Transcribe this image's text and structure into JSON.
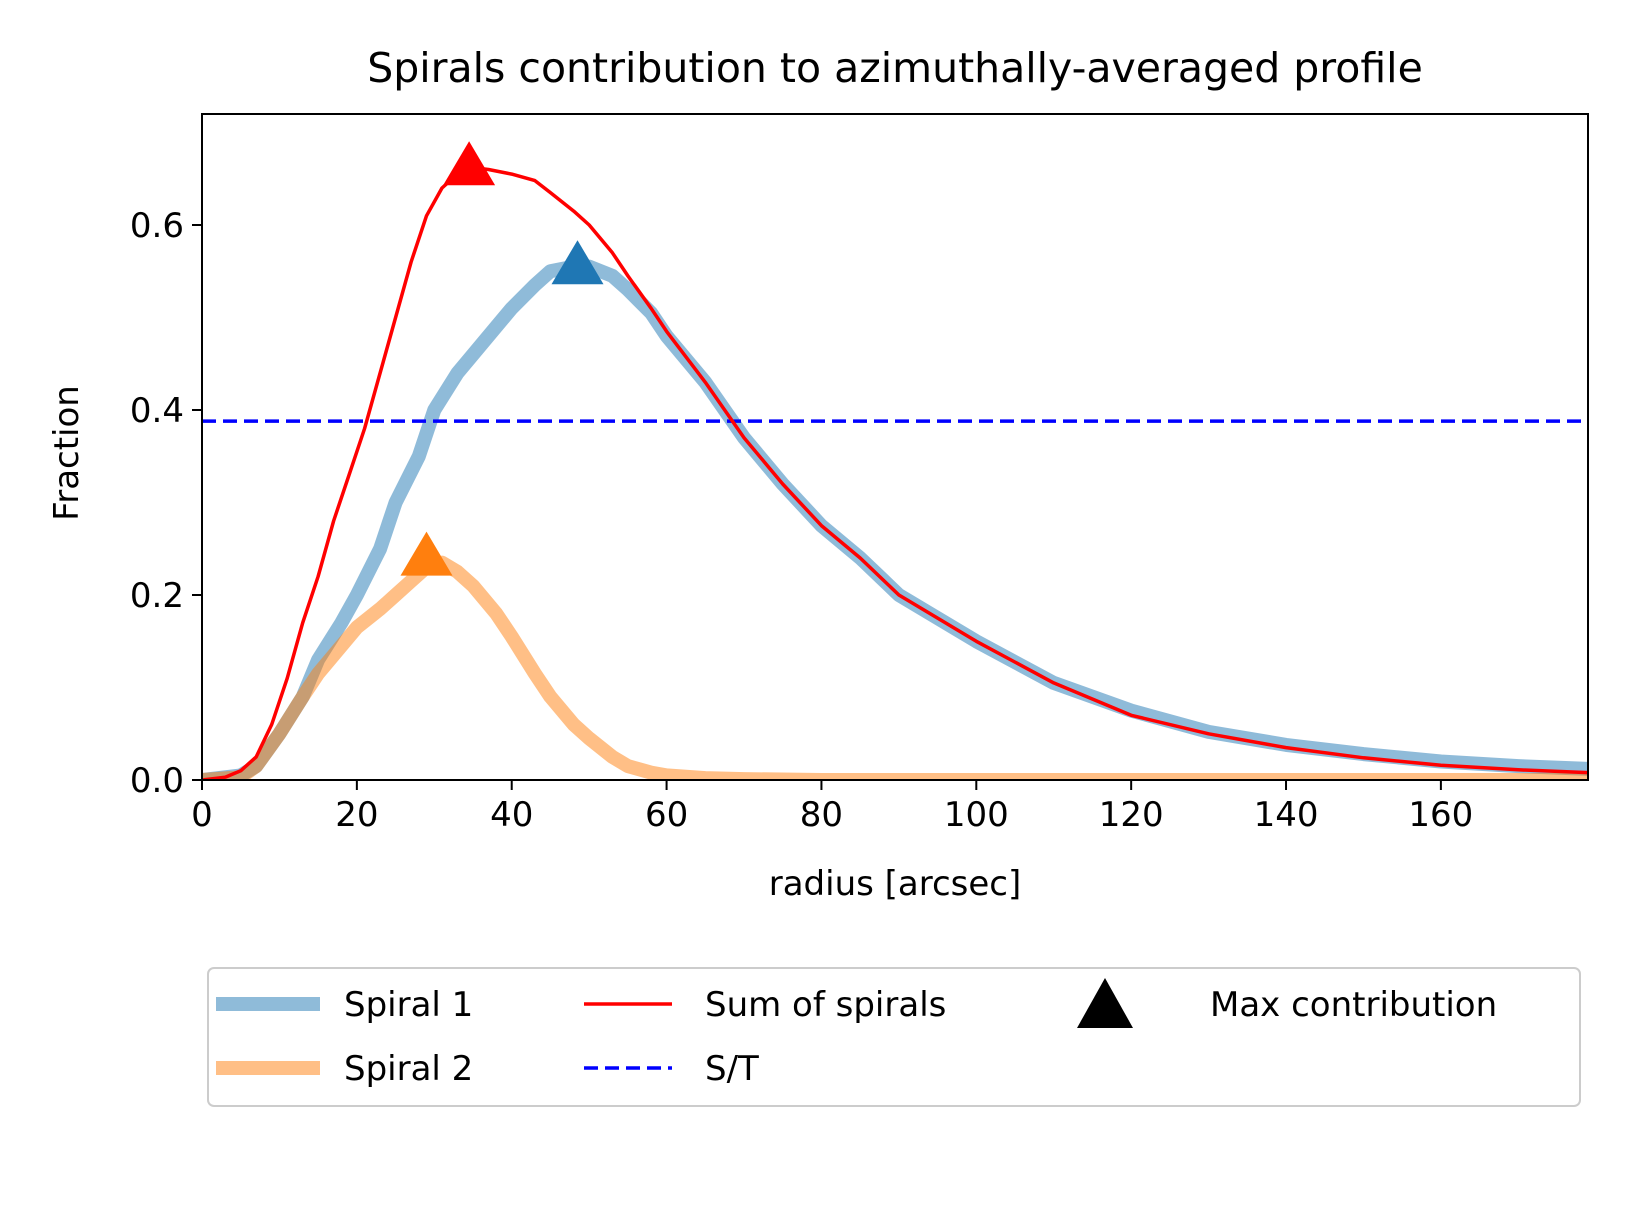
{
  "chart_data": {
    "type": "line",
    "title": "Spirals contribution to azimuthally-averaged profile",
    "xlabel": "radius [arcsec]",
    "ylabel": "Fraction",
    "xlim": [
      0,
      179
    ],
    "ylim": [
      0,
      0.72
    ],
    "xticks": [
      0,
      20,
      40,
      60,
      80,
      100,
      120,
      140,
      160
    ],
    "yticks": [
      0.0,
      0.2,
      0.4,
      0.6
    ],
    "xtick_labels": [
      "0",
      "20",
      "40",
      "60",
      "80",
      "100",
      "120",
      "140",
      "160"
    ],
    "ytick_labels": [
      "0.0",
      "0.2",
      "0.4",
      "0.6"
    ],
    "grid": false,
    "legend_placement": "below plot, 3 columns",
    "series": [
      {
        "name": "Spiral 1",
        "color": "#1f77b4",
        "alpha": 0.5,
        "style": "thick-solid",
        "x": [
          0,
          5,
          7,
          10,
          13,
          15,
          18,
          20,
          23,
          25,
          28,
          30,
          33,
          35,
          38,
          40,
          43,
          45,
          48,
          50,
          53,
          55,
          58,
          60,
          65,
          70,
          75,
          80,
          85,
          90,
          95,
          100,
          110,
          120,
          130,
          140,
          150,
          160,
          170,
          179
        ],
        "y": [
          0.0,
          0.005,
          0.015,
          0.05,
          0.09,
          0.13,
          0.17,
          0.2,
          0.25,
          0.3,
          0.35,
          0.4,
          0.44,
          0.46,
          0.49,
          0.51,
          0.535,
          0.55,
          0.555,
          0.555,
          0.545,
          0.53,
          0.505,
          0.48,
          0.43,
          0.37,
          0.32,
          0.275,
          0.24,
          0.2,
          0.175,
          0.15,
          0.105,
          0.075,
          0.052,
          0.038,
          0.028,
          0.02,
          0.015,
          0.012
        ]
      },
      {
        "name": "Spiral 2",
        "color": "#ff7f0e",
        "alpha": 0.5,
        "style": "thick-solid",
        "x": [
          0,
          5,
          7,
          10,
          13,
          15,
          18,
          20,
          23,
          25,
          27,
          29,
          31,
          33,
          35,
          38,
          40,
          43,
          45,
          48,
          50,
          53,
          55,
          58,
          60,
          65,
          70,
          80,
          100,
          120,
          140,
          160,
          179
        ],
        "y": [
          0.0,
          0.003,
          0.015,
          0.05,
          0.09,
          0.115,
          0.145,
          0.165,
          0.185,
          0.2,
          0.215,
          0.23,
          0.235,
          0.225,
          0.21,
          0.18,
          0.155,
          0.115,
          0.09,
          0.06,
          0.045,
          0.025,
          0.015,
          0.008,
          0.005,
          0.002,
          0.001,
          0.0,
          0.0,
          0.0,
          0.0,
          0.0,
          0.0
        ]
      },
      {
        "name": "Sum of spirals",
        "color": "#ff0000",
        "style": "solid",
        "x": [
          0,
          3,
          5,
          7,
          9,
          11,
          13,
          15,
          17,
          19,
          21,
          23,
          25,
          27,
          29,
          31,
          33,
          35,
          37,
          40,
          43,
          45,
          48,
          50,
          53,
          55,
          58,
          60,
          65,
          70,
          75,
          80,
          85,
          90,
          95,
          100,
          110,
          120,
          130,
          140,
          150,
          160,
          170,
          179
        ],
        "y": [
          0.0,
          0.003,
          0.01,
          0.025,
          0.06,
          0.11,
          0.17,
          0.22,
          0.28,
          0.33,
          0.38,
          0.44,
          0.5,
          0.56,
          0.61,
          0.64,
          0.655,
          0.662,
          0.66,
          0.655,
          0.648,
          0.635,
          0.615,
          0.6,
          0.57,
          0.545,
          0.51,
          0.485,
          0.43,
          0.37,
          0.32,
          0.275,
          0.24,
          0.2,
          0.175,
          0.15,
          0.105,
          0.07,
          0.05,
          0.035,
          0.024,
          0.016,
          0.011,
          0.008
        ]
      },
      {
        "name": "S/T",
        "color": "#0000ff",
        "style": "dashed",
        "y_constant": 0.388
      }
    ],
    "markers": {
      "name": "Max contribution",
      "shape": "triangle",
      "points": [
        {
          "x": 34.5,
          "y": 0.662,
          "color": "#ff0000"
        },
        {
          "x": 48.5,
          "y": 0.555,
          "color": "#1f77b4"
        },
        {
          "x": 29.0,
          "y": 0.24,
          "color": "#ff7f0e"
        }
      ]
    },
    "legend": [
      {
        "label": "Spiral 1",
        "color": "#1f77b4",
        "style": "thick"
      },
      {
        "label": "Spiral 2",
        "color": "#ff7f0e",
        "style": "thick"
      },
      {
        "label": "Sum of spirals",
        "color": "#ff0000",
        "style": "solid"
      },
      {
        "label": "S/T",
        "color": "#0000ff",
        "style": "dashed"
      },
      {
        "label": "Max contribution",
        "color": "#000000",
        "style": "triangle"
      }
    ]
  }
}
